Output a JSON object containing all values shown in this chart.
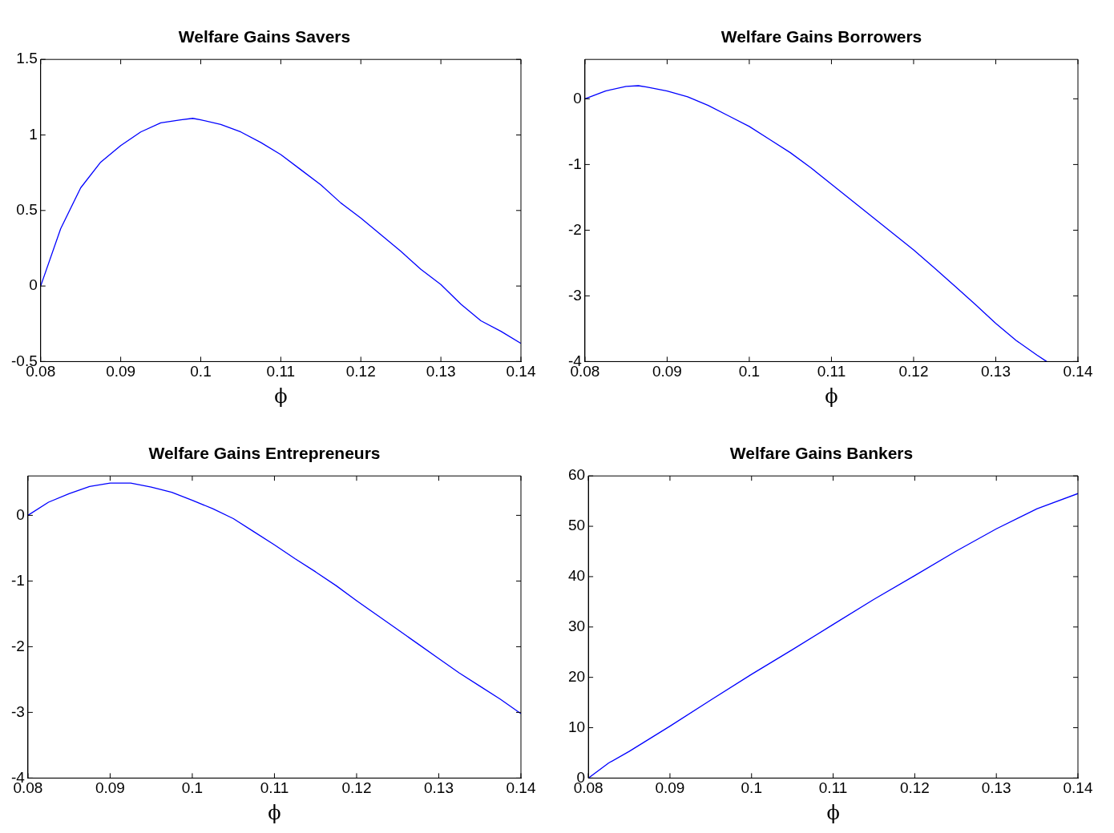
{
  "chart_data": [
    {
      "type": "line",
      "title": "Welfare Gains Savers",
      "xlabel": "ϕ",
      "xlim": [
        0.08,
        0.14
      ],
      "xticks": [
        0.08,
        0.09,
        0.1,
        0.11,
        0.12,
        0.13,
        0.14
      ],
      "ylim": [
        -0.5,
        1.5
      ],
      "yticks": [
        -0.5,
        0,
        0.5,
        1,
        1.5
      ],
      "series": [
        {
          "color": "#0000ff",
          "x": [
            0.08,
            0.0825,
            0.085,
            0.0875,
            0.09,
            0.0925,
            0.095,
            0.0975,
            0.099,
            0.1,
            0.1025,
            0.105,
            0.1075,
            0.11,
            0.1125,
            0.115,
            0.1175,
            0.12,
            0.1225,
            0.125,
            0.1275,
            0.13,
            0.1325,
            0.135,
            0.1375,
            0.14
          ],
          "values": [
            0,
            0.38,
            0.65,
            0.82,
            0.93,
            1.02,
            1.08,
            1.1,
            1.11,
            1.1,
            1.07,
            1.02,
            0.95,
            0.87,
            0.77,
            0.67,
            0.55,
            0.45,
            0.34,
            0.23,
            0.11,
            0.01,
            -0.12,
            -0.23,
            -0.3,
            -0.38
          ]
        }
      ]
    },
    {
      "type": "line",
      "title": "Welfare Gains Borrowers",
      "xlabel": "ϕ",
      "xlim": [
        0.08,
        0.14
      ],
      "xticks": [
        0.08,
        0.09,
        0.1,
        0.11,
        0.12,
        0.13,
        0.14
      ],
      "ylim": [
        -4,
        0.6
      ],
      "yticks": [
        -4,
        -3,
        -2,
        -1,
        0
      ],
      "series": [
        {
          "color": "#0000ff",
          "x": [
            0.08,
            0.0825,
            0.085,
            0.0865,
            0.0875,
            0.09,
            0.0925,
            0.095,
            0.0975,
            0.1,
            0.1025,
            0.105,
            0.1075,
            0.11,
            0.1125,
            0.115,
            0.1175,
            0.12,
            0.1225,
            0.125,
            0.1275,
            0.13,
            0.1325,
            0.135,
            0.1362
          ],
          "values": [
            0,
            0.12,
            0.19,
            0.2,
            0.18,
            0.12,
            0.03,
            -0.1,
            -0.26,
            -0.42,
            -0.62,
            -0.82,
            -1.05,
            -1.3,
            -1.55,
            -1.8,
            -2.05,
            -2.3,
            -2.57,
            -2.85,
            -3.13,
            -3.42,
            -3.68,
            -3.9,
            -4.0
          ]
        }
      ]
    },
    {
      "type": "line",
      "title": "Welfare Gains Entrepreneurs",
      "xlabel": "ϕ",
      "xlim": [
        0.08,
        0.14
      ],
      "xticks": [
        0.08,
        0.09,
        0.1,
        0.11,
        0.12,
        0.13,
        0.14
      ],
      "ylim": [
        -4,
        0.6
      ],
      "yticks": [
        -4,
        -3,
        -2,
        -1,
        0
      ],
      "series": [
        {
          "color": "#0000ff",
          "x": [
            0.08,
            0.0825,
            0.085,
            0.0875,
            0.09,
            0.0925,
            0.095,
            0.0975,
            0.1,
            0.1025,
            0.105,
            0.1075,
            0.11,
            0.1125,
            0.115,
            0.1175,
            0.12,
            0.1225,
            0.125,
            0.1275,
            0.13,
            0.1325,
            0.135,
            0.1375,
            0.14
          ],
          "values": [
            0,
            0.2,
            0.33,
            0.44,
            0.49,
            0.49,
            0.43,
            0.35,
            0.23,
            0.1,
            -0.05,
            -0.25,
            -0.45,
            -0.66,
            -0.86,
            -1.07,
            -1.3,
            -1.52,
            -1.74,
            -1.96,
            -2.18,
            -2.4,
            -2.6,
            -2.8,
            -3.02
          ]
        }
      ]
    },
    {
      "type": "line",
      "title": "Welfare Gains Bankers",
      "xlabel": "ϕ",
      "xlim": [
        0.08,
        0.14
      ],
      "xticks": [
        0.08,
        0.09,
        0.1,
        0.11,
        0.12,
        0.13,
        0.14
      ],
      "ylim": [
        0,
        60
      ],
      "yticks": [
        0,
        10,
        20,
        30,
        40,
        50,
        60
      ],
      "series": [
        {
          "color": "#0000ff",
          "x": [
            0.08,
            0.0825,
            0.085,
            0.09,
            0.095,
            0.1,
            0.105,
            0.11,
            0.115,
            0.12,
            0.125,
            0.13,
            0.135,
            0.14
          ],
          "values": [
            0,
            3.0,
            5.3,
            10.3,
            15.5,
            20.6,
            25.5,
            30.5,
            35.5,
            40.2,
            45.0,
            49.5,
            53.5,
            56.5
          ]
        }
      ]
    }
  ]
}
